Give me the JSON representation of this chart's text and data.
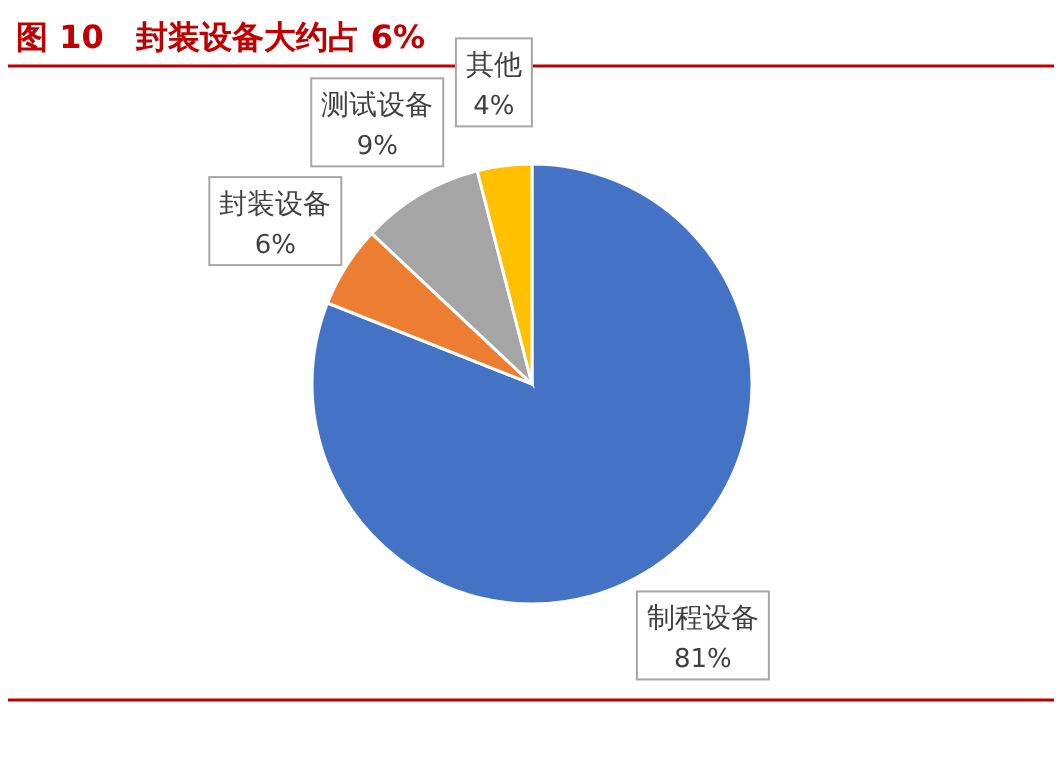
{
  "chart_data": {
    "type": "pie",
    "title": "图 10　封装设备大约占 6%",
    "categories": [
      "制程设备",
      "封装设备",
      "测试设备",
      "其他"
    ],
    "values": [
      81,
      6,
      9,
      4
    ],
    "colors": [
      "#4472c4",
      "#ed7d31",
      "#a5a5a5",
      "#ffc000"
    ],
    "value_labels": [
      "81%",
      "6%",
      "9%",
      "4%"
    ]
  }
}
